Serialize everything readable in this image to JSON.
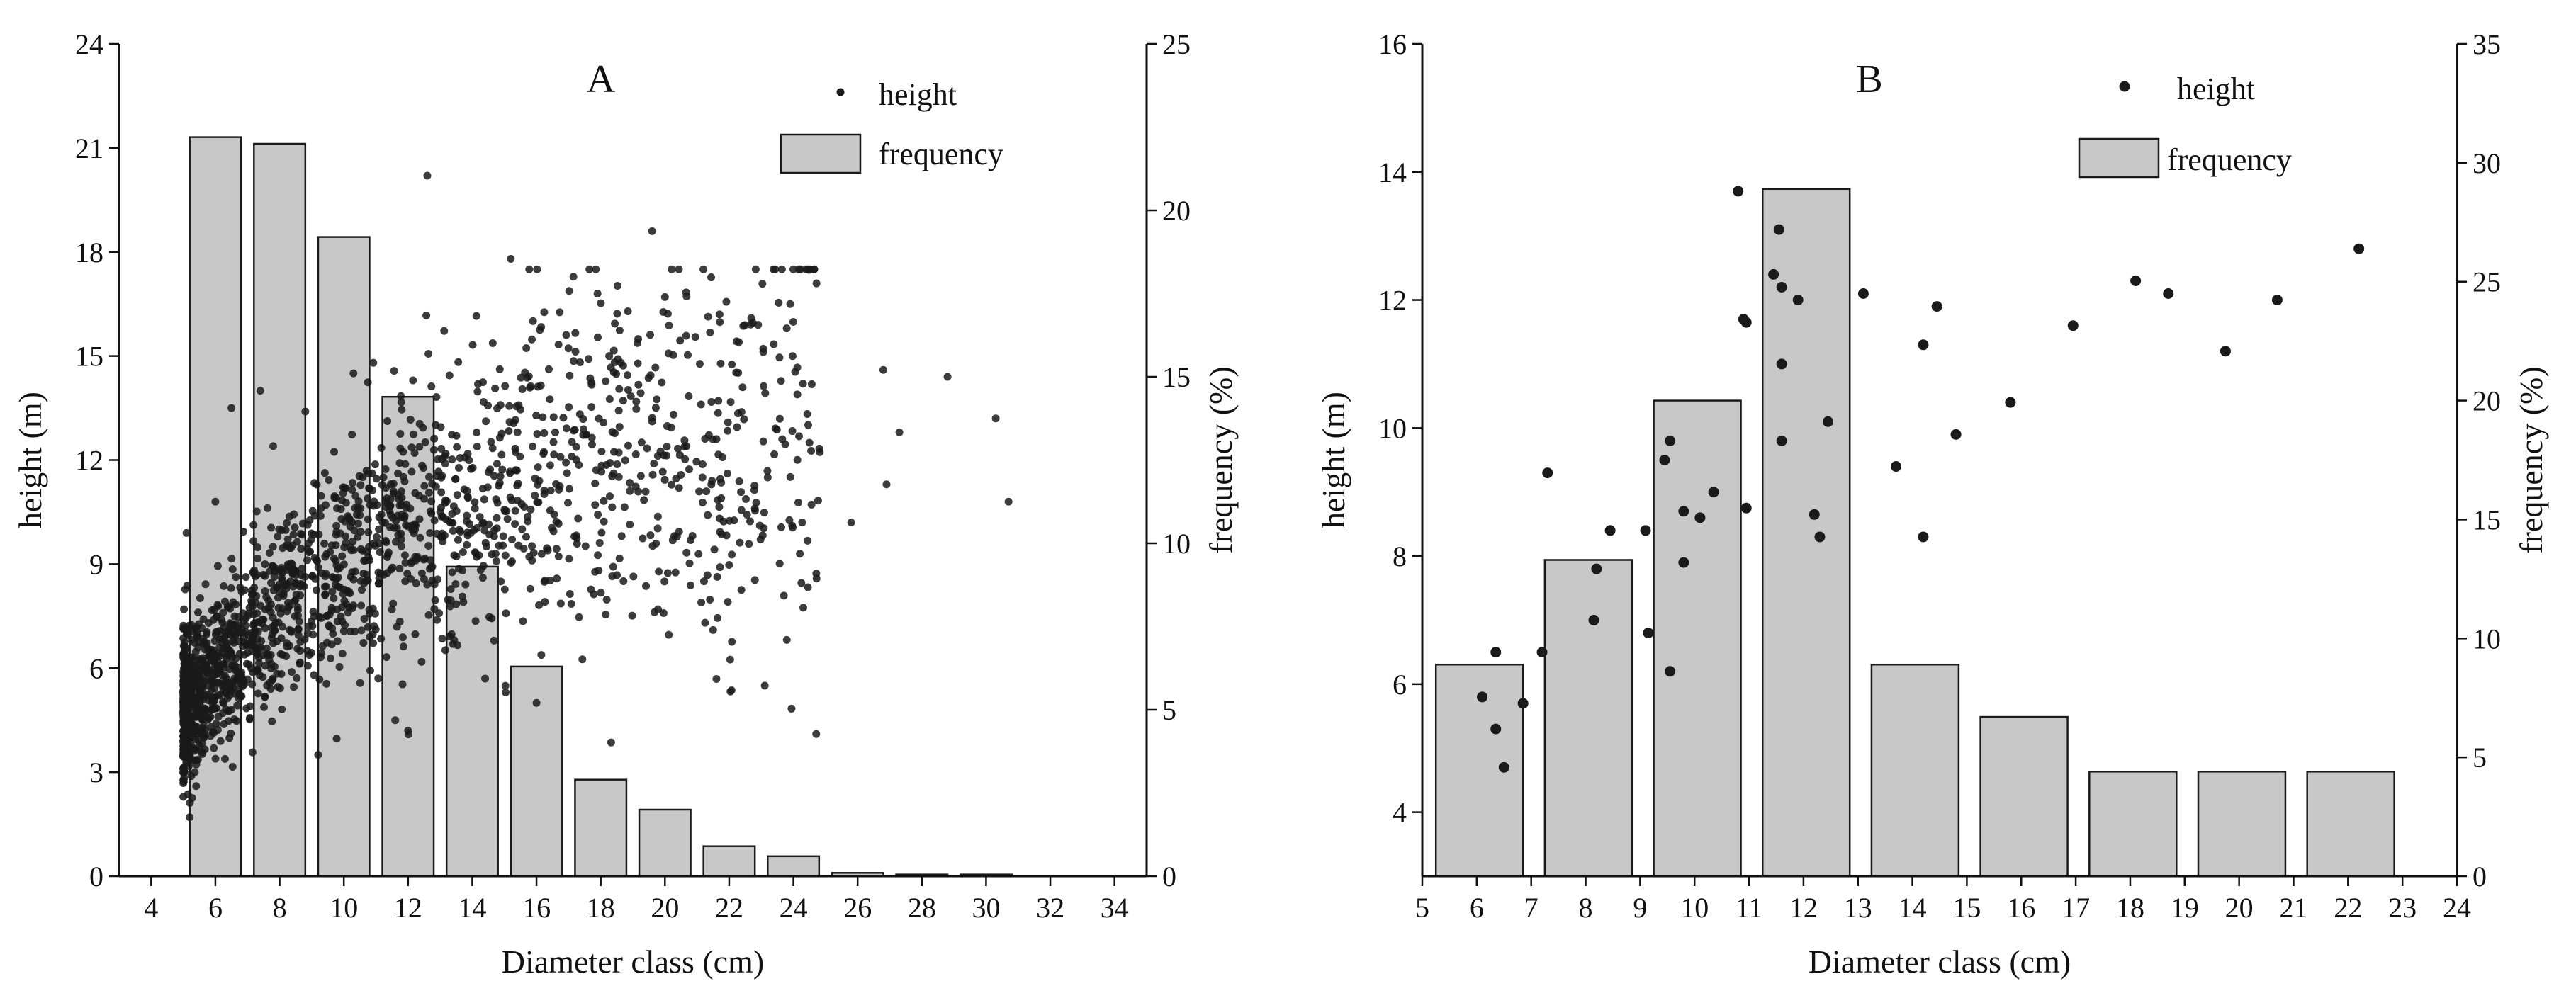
{
  "chart_data": [
    {
      "type": "bar+scatter",
      "panel_label": "A",
      "xlabel": "Diameter class (cm)",
      "ylabel_left": "height (m)",
      "ylabel_right": "frequency (%)",
      "xlim": [
        3,
        35
      ],
      "ylim_left": [
        0,
        24
      ],
      "ylim_right": [
        0,
        25
      ],
      "x_ticks": [
        4,
        6,
        8,
        10,
        12,
        14,
        16,
        18,
        20,
        22,
        24,
        26,
        28,
        30,
        32,
        34
      ],
      "y_ticks_left": [
        0,
        3,
        6,
        9,
        12,
        15,
        18,
        21,
        24
      ],
      "y_ticks_right": [
        0,
        5,
        10,
        15,
        20,
        25
      ],
      "bar_width": 1.6,
      "legend": {
        "scatter": "height",
        "bars": "frequency"
      },
      "bars": {
        "name": "frequency",
        "categories": [
          6,
          8,
          10,
          12,
          14,
          16,
          18,
          20,
          22,
          24,
          26,
          28,
          30
        ],
        "values": [
          22.2,
          22.0,
          19.2,
          14.4,
          9.3,
          6.3,
          2.9,
          2.0,
          0.9,
          0.6,
          0.1,
          0.05,
          0.05
        ]
      },
      "scatter": {
        "name": "height",
        "generated_cloud": {
          "n": 1900,
          "seed": 7,
          "x_min": 5.0,
          "x_max": 25.0,
          "mean_at_xmin": 4.8,
          "asymptote": 12.6,
          "rate": 0.16,
          "spread_base": 1.0,
          "spread_growth": 0.12
        },
        "extra_points": [
          {
            "x": 12.6,
            "y": 20.2
          },
          {
            "x": 15.2,
            "y": 17.8
          },
          {
            "x": 19.6,
            "y": 18.6
          },
          {
            "x": 17.9,
            "y": 16.8
          },
          {
            "x": 20.0,
            "y": 16.7
          },
          {
            "x": 23.9,
            "y": 16.5
          },
          {
            "x": 21.7,
            "y": 16.2
          },
          {
            "x": 22.9,
            "y": 15.9
          },
          {
            "x": 26.8,
            "y": 14.6
          },
          {
            "x": 28.8,
            "y": 14.4
          },
          {
            "x": 27.3,
            "y": 12.8
          },
          {
            "x": 30.3,
            "y": 13.2
          },
          {
            "x": 26.9,
            "y": 11.3
          },
          {
            "x": 30.7,
            "y": 10.8
          },
          {
            "x": 25.8,
            "y": 10.2
          },
          {
            "x": 24.5,
            "y": 12.5
          },
          {
            "x": 23.2,
            "y": 11.5
          },
          {
            "x": 21.5,
            "y": 7.1
          },
          {
            "x": 24.2,
            "y": 9.3
          },
          {
            "x": 5.2,
            "y": 1.7
          },
          {
            "x": 5.4,
            "y": 2.6
          },
          {
            "x": 6.5,
            "y": 13.5
          },
          {
            "x": 7.4,
            "y": 14.0
          },
          {
            "x": 8.8,
            "y": 13.4
          },
          {
            "x": 10.3,
            "y": 14.5
          },
          {
            "x": 16.0,
            "y": 5.0
          },
          {
            "x": 14.4,
            "y": 5.7
          },
          {
            "x": 12.0,
            "y": 4.2
          },
          {
            "x": 11.6,
            "y": 4.5
          },
          {
            "x": 9.2,
            "y": 3.5
          },
          {
            "x": 5.1,
            "y": 9.9
          },
          {
            "x": 6.0,
            "y": 10.8
          },
          {
            "x": 7.8,
            "y": 12.4
          }
        ]
      }
    },
    {
      "type": "bar+scatter",
      "panel_label": "B",
      "xlabel": "Diameter class (cm)",
      "ylabel_left": "height (m)",
      "ylabel_right": "frequency (%)",
      "xlim": [
        5,
        24
      ],
      "ylim_left": [
        3,
        16
      ],
      "ylim_right": [
        0,
        35
      ],
      "x_ticks": [
        5,
        6,
        7,
        8,
        9,
        10,
        11,
        12,
        13,
        14,
        15,
        16,
        17,
        18,
        19,
        20,
        21,
        22,
        23,
        24
      ],
      "y_ticks_left": [
        4,
        6,
        8,
        10,
        12,
        14,
        16
      ],
      "y_ticks_right": [
        0,
        5,
        10,
        15,
        20,
        25,
        30,
        35
      ],
      "legend": {
        "scatter": "height",
        "bars": "frequency"
      },
      "bars": {
        "name": "frequency",
        "categories": [
          "6",
          "8",
          "10",
          "12",
          "14",
          "16",
          "18",
          "20",
          "22"
        ],
        "ranges": [
          [
            5.25,
            6.85
          ],
          [
            7.25,
            8.85
          ],
          [
            9.25,
            10.85
          ],
          [
            11.25,
            12.85
          ],
          [
            13.25,
            14.85
          ],
          [
            15.25,
            16.85
          ],
          [
            17.25,
            18.85
          ],
          [
            19.25,
            20.85
          ],
          [
            21.25,
            22.85
          ]
        ],
        "values": [
          8.9,
          13.3,
          20.0,
          28.9,
          8.9,
          6.7,
          4.4,
          4.4,
          4.4
        ]
      },
      "scatter": {
        "name": "height",
        "points": [
          {
            "x": 6.1,
            "y": 5.8
          },
          {
            "x": 6.35,
            "y": 6.5
          },
          {
            "x": 6.35,
            "y": 5.3
          },
          {
            "x": 6.5,
            "y": 4.7
          },
          {
            "x": 6.85,
            "y": 5.7
          },
          {
            "x": 7.2,
            "y": 6.5
          },
          {
            "x": 7.3,
            "y": 9.3
          },
          {
            "x": 8.15,
            "y": 7.0
          },
          {
            "x": 8.2,
            "y": 7.8
          },
          {
            "x": 8.45,
            "y": 8.4
          },
          {
            "x": 9.1,
            "y": 8.4
          },
          {
            "x": 9.15,
            "y": 6.8
          },
          {
            "x": 9.45,
            "y": 9.5
          },
          {
            "x": 9.55,
            "y": 9.8
          },
          {
            "x": 9.55,
            "y": 6.2
          },
          {
            "x": 9.8,
            "y": 8.7
          },
          {
            "x": 9.8,
            "y": 7.9
          },
          {
            "x": 10.1,
            "y": 8.6
          },
          {
            "x": 10.35,
            "y": 9.0
          },
          {
            "x": 10.8,
            "y": 13.7
          },
          {
            "x": 10.9,
            "y": 11.7
          },
          {
            "x": 10.95,
            "y": 11.65
          },
          {
            "x": 10.95,
            "y": 8.75
          },
          {
            "x": 11.45,
            "y": 12.4
          },
          {
            "x": 11.55,
            "y": 13.1
          },
          {
            "x": 11.6,
            "y": 12.2
          },
          {
            "x": 11.6,
            "y": 11.0
          },
          {
            "x": 11.6,
            "y": 9.8
          },
          {
            "x": 11.9,
            "y": 12.0
          },
          {
            "x": 12.2,
            "y": 8.65
          },
          {
            "x": 12.3,
            "y": 8.3
          },
          {
            "x": 12.45,
            "y": 10.1
          },
          {
            "x": 13.1,
            "y": 12.1
          },
          {
            "x": 13.7,
            "y": 9.4
          },
          {
            "x": 14.2,
            "y": 11.3
          },
          {
            "x": 14.2,
            "y": 8.3
          },
          {
            "x": 14.45,
            "y": 11.9
          },
          {
            "x": 14.8,
            "y": 9.9
          },
          {
            "x": 15.8,
            "y": 10.4
          },
          {
            "x": 16.95,
            "y": 11.6
          },
          {
            "x": 18.1,
            "y": 12.3
          },
          {
            "x": 18.7,
            "y": 12.1
          },
          {
            "x": 19.75,
            "y": 11.2
          },
          {
            "x": 20.7,
            "y": 12.0
          },
          {
            "x": 22.2,
            "y": 12.8
          }
        ]
      }
    }
  ]
}
